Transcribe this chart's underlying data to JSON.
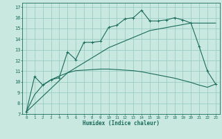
{
  "title": "",
  "xlabel": "Humidex (Indice chaleur)",
  "bg_color": "#c8e8e0",
  "grid_color": "#90c8c0",
  "line_color": "#1a6b5a",
  "xlim": [
    -0.5,
    23.5
  ],
  "ylim": [
    7,
    17.4
  ],
  "yticks": [
    7,
    8,
    9,
    10,
    11,
    12,
    13,
    14,
    15,
    16,
    17
  ],
  "xticks": [
    0,
    1,
    2,
    3,
    4,
    5,
    6,
    7,
    8,
    9,
    10,
    11,
    12,
    13,
    14,
    15,
    16,
    17,
    18,
    19,
    20,
    21,
    22,
    23
  ],
  "line1_x": [
    0,
    1,
    2,
    3,
    4,
    5,
    6,
    7,
    8,
    9,
    10,
    11,
    12,
    13,
    14,
    15,
    16,
    17,
    18,
    19,
    20,
    21,
    22,
    23
  ],
  "line1_y": [
    7.2,
    10.5,
    9.7,
    10.2,
    10.4,
    12.8,
    12.1,
    13.7,
    13.7,
    13.8,
    15.1,
    15.3,
    15.9,
    16.0,
    16.7,
    15.7,
    15.7,
    15.8,
    16.0,
    15.8,
    15.5,
    13.3,
    11.0,
    9.8
  ],
  "line2_x": [
    0,
    1,
    2,
    3,
    4,
    5,
    6,
    7,
    8,
    9,
    10,
    11,
    12,
    13,
    14,
    15,
    16,
    17,
    18,
    19,
    20,
    21,
    22,
    23
  ],
  "line2_y": [
    7.2,
    8.8,
    9.7,
    10.2,
    10.55,
    10.85,
    11.05,
    11.1,
    11.15,
    11.2,
    11.2,
    11.15,
    11.1,
    11.05,
    10.95,
    10.8,
    10.65,
    10.5,
    10.35,
    10.15,
    9.95,
    9.7,
    9.5,
    9.8
  ],
  "line3_x": [
    0,
    5,
    10,
    15,
    20,
    23
  ],
  "line3_y": [
    7.2,
    10.85,
    13.2,
    14.8,
    15.5,
    15.5
  ]
}
